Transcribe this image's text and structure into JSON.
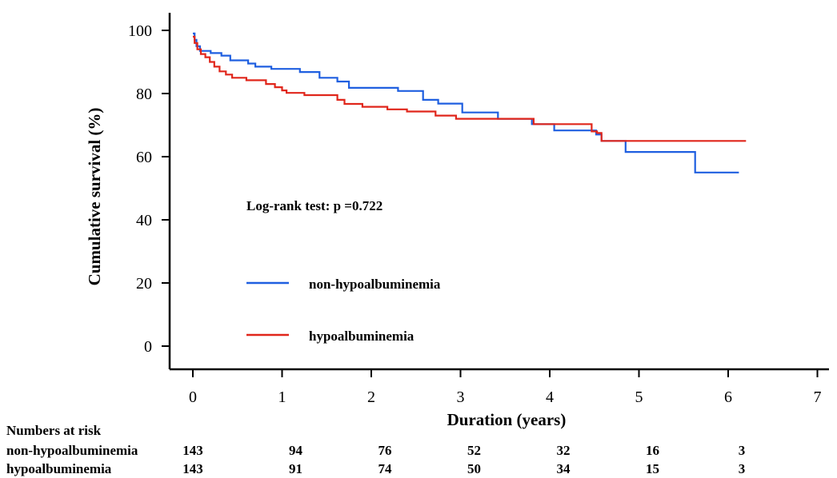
{
  "chart_data": {
    "type": "line",
    "subtype": "kaplan-meier",
    "xlabel": "Duration (years)",
    "ylabel": "Cumulative survival (%)",
    "xlim": [
      0,
      7
    ],
    "ylim": [
      0,
      100
    ],
    "x_ticks": [
      0,
      1,
      2,
      3,
      4,
      5,
      6,
      7
    ],
    "y_ticks": [
      0,
      20,
      40,
      60,
      80,
      100
    ],
    "grid": false,
    "legend_position": "left-middle",
    "annotation": "Log-rank test: p =0.722",
    "series": [
      {
        "name": "non-hypoalbuminemia",
        "color": "#1f5fe0",
        "points": [
          [
            0,
            99
          ],
          [
            0.02,
            97
          ],
          [
            0.04,
            95
          ],
          [
            0.08,
            93.5
          ],
          [
            0.2,
            92.8
          ],
          [
            0.32,
            92
          ],
          [
            0.42,
            90.5
          ],
          [
            0.62,
            89.5
          ],
          [
            0.7,
            88.5
          ],
          [
            0.88,
            87.8
          ],
          [
            1.2,
            86.8
          ],
          [
            1.42,
            85
          ],
          [
            1.62,
            83.8
          ],
          [
            1.75,
            81.8
          ],
          [
            2.3,
            80.8
          ],
          [
            2.58,
            78
          ],
          [
            2.75,
            76.8
          ],
          [
            3.02,
            74
          ],
          [
            3.42,
            72
          ],
          [
            3.8,
            70.3
          ],
          [
            4.05,
            68.3
          ],
          [
            4.52,
            67
          ],
          [
            4.58,
            65
          ],
          [
            4.85,
            61.5
          ],
          [
            5.63,
            55
          ],
          [
            6.12,
            55
          ]
        ]
      },
      {
        "name": "hypoalbuminemia",
        "color": "#e0261b",
        "points": [
          [
            0,
            98
          ],
          [
            0.02,
            96
          ],
          [
            0.05,
            94
          ],
          [
            0.09,
            92.5
          ],
          [
            0.14,
            91.5
          ],
          [
            0.19,
            90
          ],
          [
            0.24,
            88.5
          ],
          [
            0.3,
            87
          ],
          [
            0.37,
            86
          ],
          [
            0.44,
            85
          ],
          [
            0.6,
            84.2
          ],
          [
            0.82,
            83
          ],
          [
            0.92,
            82
          ],
          [
            1.0,
            81
          ],
          [
            1.05,
            80.2
          ],
          [
            1.25,
            79.5
          ],
          [
            1.62,
            78
          ],
          [
            1.7,
            76.7
          ],
          [
            1.9,
            75.8
          ],
          [
            2.18,
            75
          ],
          [
            2.4,
            74.3
          ],
          [
            2.72,
            73
          ],
          [
            2.95,
            72
          ],
          [
            3.78,
            72
          ],
          [
            3.82,
            70.3
          ],
          [
            4.47,
            68
          ],
          [
            4.53,
            67.5
          ],
          [
            4.58,
            65
          ],
          [
            6.2,
            65
          ]
        ]
      }
    ],
    "risk_table": {
      "header": "Numbers at risk",
      "times": [
        0,
        1,
        2,
        3,
        4,
        5,
        6
      ],
      "rows": [
        {
          "label": "non-hypoalbuminemia",
          "values": [
            143,
            94,
            76,
            52,
            32,
            16,
            3
          ]
        },
        {
          "label": "hypoalbuminemia",
          "values": [
            143,
            91,
            74,
            50,
            34,
            15,
            3
          ]
        }
      ]
    }
  }
}
